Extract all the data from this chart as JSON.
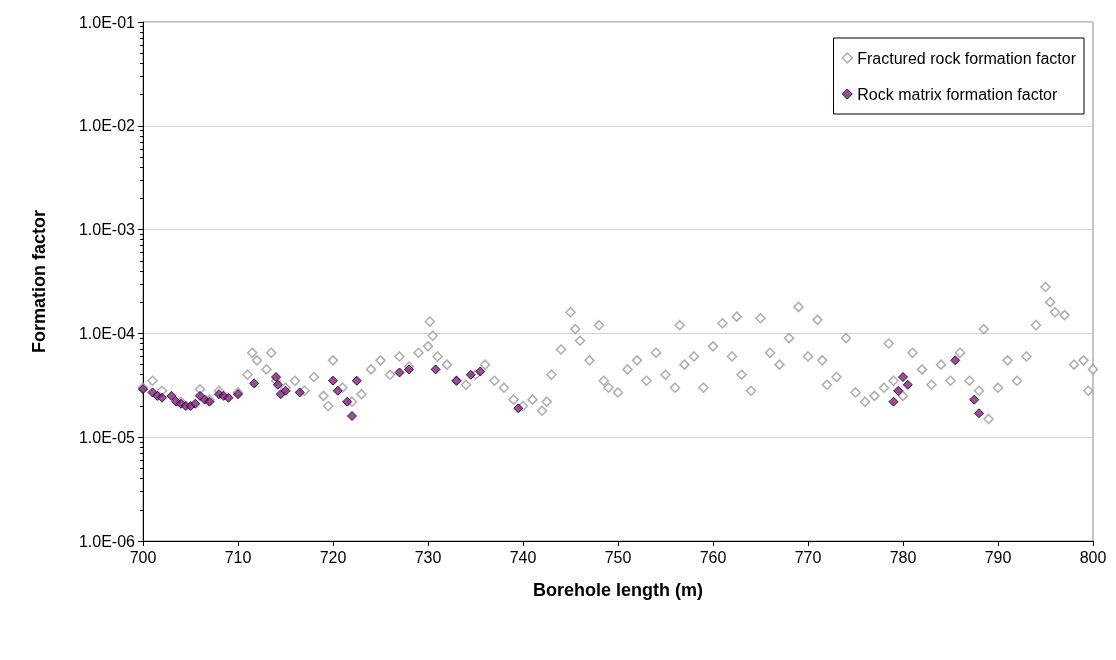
{
  "chart_data": {
    "type": "scatter",
    "xlabel": "Borehole length (m)",
    "ylabel": "Formation factor",
    "log": "y",
    "grid": "y",
    "legend": "top right",
    "marker": "diamond",
    "xlim": [
      700,
      800
    ],
    "xticks": [
      700,
      710,
      720,
      730,
      740,
      750,
      760,
      770,
      780,
      790,
      800
    ],
    "ylim": [
      1e-06,
      0.1
    ],
    "yticks": [
      {
        "value": 1e-06,
        "label": "1.0E-06"
      },
      {
        "value": 1e-05,
        "label": "1.0E-05"
      },
      {
        "value": 0.0001,
        "label": "1.0E-04"
      },
      {
        "value": 0.001,
        "label": "1.0E-03"
      },
      {
        "value": 0.01,
        "label": "1.0E-02"
      },
      {
        "value": 0.1,
        "label": "1.0E-01"
      }
    ],
    "series": [
      {
        "name": "Fractured rock formation factor",
        "color": "#999999",
        "x": [
          700,
          701,
          702,
          704,
          706,
          707,
          708,
          710,
          711,
          711.5,
          712,
          713,
          713.5,
          714,
          715,
          716,
          717,
          718,
          719,
          719.5,
          720,
          721,
          722,
          723,
          724,
          725,
          726,
          727,
          728,
          729,
          730,
          730.2,
          730.5,
          731,
          732,
          733,
          734,
          735,
          736,
          737,
          738,
          739,
          740,
          741,
          742,
          742.5,
          743,
          744,
          745,
          745.5,
          746,
          747,
          748,
          748.5,
          749,
          750,
          751,
          752,
          753,
          754,
          755,
          756,
          756.5,
          757,
          758,
          759,
          760,
          761,
          762,
          762.5,
          763,
          764,
          765,
          766,
          767,
          768,
          769,
          770,
          771,
          771.5,
          772,
          773,
          774,
          775,
          776,
          777,
          778,
          778.5,
          779,
          780,
          781,
          782,
          783,
          784,
          785,
          786,
          787,
          788,
          788.5,
          789,
          790,
          791,
          792,
          793,
          794,
          795,
          795.5,
          796,
          797,
          798,
          799,
          799.5,
          800
        ],
        "values": [
          3e-05,
          3.5e-05,
          2.8e-05,
          2.2e-05,
          2.9e-05,
          2.3e-05,
          2.8e-05,
          2.7e-05,
          4e-05,
          6.5e-05,
          5.5e-05,
          4.5e-05,
          6.5e-05,
          3.5e-05,
          3e-05,
          3.5e-05,
          2.8e-05,
          3.8e-05,
          2.5e-05,
          2e-05,
          5.5e-05,
          3e-05,
          2.2e-05,
          2.6e-05,
          4.5e-05,
          5.5e-05,
          4e-05,
          6e-05,
          4.8e-05,
          6.5e-05,
          7.5e-05,
          0.00013,
          9.5e-05,
          6e-05,
          5e-05,
          3.5e-05,
          3.2e-05,
          4e-05,
          5e-05,
          3.5e-05,
          3e-05,
          2.3e-05,
          2e-05,
          2.3e-05,
          1.8e-05,
          2.2e-05,
          4e-05,
          7e-05,
          0.00016,
          0.00011,
          8.5e-05,
          5.5e-05,
          0.00012,
          3.5e-05,
          3e-05,
          2.7e-05,
          4.5e-05,
          5.5e-05,
          3.5e-05,
          6.5e-05,
          4e-05,
          3e-05,
          0.00012,
          5e-05,
          6e-05,
          3e-05,
          7.5e-05,
          0.000125,
          6e-05,
          0.000145,
          4e-05,
          2.8e-05,
          0.00014,
          6.5e-05,
          5e-05,
          9e-05,
          0.00018,
          6e-05,
          0.000135,
          5.5e-05,
          3.2e-05,
          3.8e-05,
          9e-05,
          2.7e-05,
          2.2e-05,
          2.5e-05,
          3e-05,
          8e-05,
          3.5e-05,
          2.5e-05,
          6.5e-05,
          4.5e-05,
          3.2e-05,
          5e-05,
          3.5e-05,
          6.5e-05,
          3.5e-05,
          2.8e-05,
          0.00011,
          1.5e-05,
          3e-05,
          5.5e-05,
          3.5e-05,
          6e-05,
          0.00012,
          0.00028,
          0.0002,
          0.00016,
          0.00015,
          5e-05,
          5.5e-05,
          2.8e-05,
          4.5e-05
        ]
      },
      {
        "name": "Rock matrix formation factor",
        "color": "#8b1a8b",
        "x": [
          700,
          701,
          701.5,
          702,
          703,
          703.5,
          704,
          704.5,
          705,
          705.5,
          706,
          706.5,
          707,
          708,
          708.5,
          709,
          710,
          711.7,
          714,
          714.2,
          714.5,
          715,
          716.5,
          720,
          720.5,
          721.5,
          722,
          722.5,
          727,
          728,
          730.8,
          733,
          734.5,
          735.5,
          739.5,
          779,
          779.5,
          780,
          780.5,
          785.5,
          787.5,
          788
        ],
        "values": [
          2.9e-05,
          2.7e-05,
          2.5e-05,
          2.4e-05,
          2.5e-05,
          2.2e-05,
          2.1e-05,
          2e-05,
          2e-05,
          2.1e-05,
          2.5e-05,
          2.3e-05,
          2.2e-05,
          2.6e-05,
          2.5e-05,
          2.4e-05,
          2.6e-05,
          3.3e-05,
          3.8e-05,
          3.2e-05,
          2.6e-05,
          2.8e-05,
          2.7e-05,
          3.5e-05,
          2.8e-05,
          2.2e-05,
          1.6e-05,
          3.5e-05,
          4.2e-05,
          4.5e-05,
          4.5e-05,
          3.5e-05,
          4e-05,
          4.3e-05,
          1.9e-05,
          2.2e-05,
          2.8e-05,
          3.8e-05,
          3.2e-05,
          5.5e-05,
          2.3e-05,
          1.7e-05
        ]
      }
    ]
  }
}
